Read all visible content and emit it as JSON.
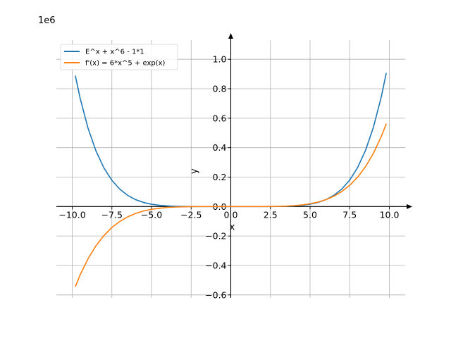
{
  "chart_data": {
    "type": "line",
    "title": "",
    "xlabel": "x",
    "ylabel": "y",
    "y_offset_label": "1e6",
    "xlim": [
      -11.0,
      11.0
    ],
    "ylim": [
      -0.62,
      1.13
    ],
    "x_ticks": [
      -10.0,
      -7.5,
      -5.0,
      -2.5,
      0.0,
      2.5,
      5.0,
      7.5,
      10.0
    ],
    "x_tick_labels": [
      "−10.0",
      "−7.5",
      "−5.0",
      "−2.5",
      "0.0",
      "2.5",
      "5.0",
      "7.5",
      "10.0"
    ],
    "y_ticks": [
      -0.6,
      -0.4,
      -0.2,
      0.0,
      0.2,
      0.4,
      0.6,
      0.8,
      1.0
    ],
    "y_tick_labels": [
      "−0.6",
      "−0.4",
      "−0.2",
      "0.0",
      "0.2",
      "0.4",
      "0.6",
      "0.8",
      "1.0"
    ],
    "grid": true,
    "legend_position": "top-left",
    "series": [
      {
        "name": "E^x + x^6 - 1*1",
        "color": "#1f77b4",
        "x": [
          -9.8,
          -9.5,
          -9.0,
          -8.5,
          -8.0,
          -7.5,
          -7.0,
          -6.5,
          -6.0,
          -5.5,
          -5.0,
          -4.5,
          -4.0,
          -3.5,
          -3.0,
          -2.5,
          -2.0,
          -1.5,
          -1.0,
          -0.5,
          0.0,
          0.5,
          1.0,
          1.5,
          2.0,
          2.5,
          3.0,
          3.5,
          4.0,
          4.5,
          5.0,
          5.5,
          6.0,
          6.5,
          7.0,
          7.5,
          8.0,
          8.5,
          9.0,
          9.5,
          9.8
        ],
        "y": [
          0.886,
          0.735,
          0.531,
          0.377,
          0.262,
          0.178,
          0.118,
          0.0754,
          0.0467,
          0.0277,
          0.0156,
          0.0083,
          0.0041,
          0.0018,
          0.0007,
          0.0002,
          0.0001,
          0.0,
          0.0,
          0.0,
          0.0,
          0.0,
          0.0,
          0.0,
          0.0001,
          0.0003,
          0.0008,
          0.0019,
          0.0042,
          0.0084,
          0.0158,
          0.0279,
          0.0471,
          0.0761,
          0.1187,
          0.1798,
          0.2651,
          0.382,
          0.5396,
          0.7485,
          0.904
        ]
      },
      {
        "name": "f'(x) = 6*x^5 + exp(x)",
        "color": "#ff7f0e",
        "x": [
          -9.8,
          -9.5,
          -9.0,
          -8.5,
          -8.0,
          -7.5,
          -7.0,
          -6.5,
          -6.0,
          -5.5,
          -5.0,
          -4.5,
          -4.0,
          -3.5,
          -3.0,
          -2.5,
          -2.0,
          -1.5,
          -1.0,
          -0.5,
          0.0,
          0.5,
          1.0,
          1.5,
          2.0,
          2.5,
          3.0,
          3.5,
          4.0,
          4.5,
          5.0,
          5.5,
          6.0,
          6.5,
          7.0,
          7.5,
          8.0,
          8.5,
          9.0,
          9.5,
          9.8
        ],
        "y": [
          -0.542,
          -0.464,
          -0.354,
          -0.266,
          -0.197,
          -0.142,
          -0.101,
          -0.0696,
          -0.0467,
          -0.0302,
          -0.0188,
          -0.0111,
          -0.0061,
          -0.0032,
          -0.0015,
          -0.0006,
          -0.0002,
          0.0,
          0.0,
          0.0,
          0.0,
          0.0,
          0.0,
          0.0,
          0.0002,
          0.0006,
          0.0015,
          0.0032,
          0.0062,
          0.0112,
          0.0189,
          0.0304,
          0.0471,
          0.0703,
          0.102,
          0.1442,
          0.1996,
          0.271,
          0.3625,
          0.4777,
          0.56
        ]
      }
    ]
  }
}
